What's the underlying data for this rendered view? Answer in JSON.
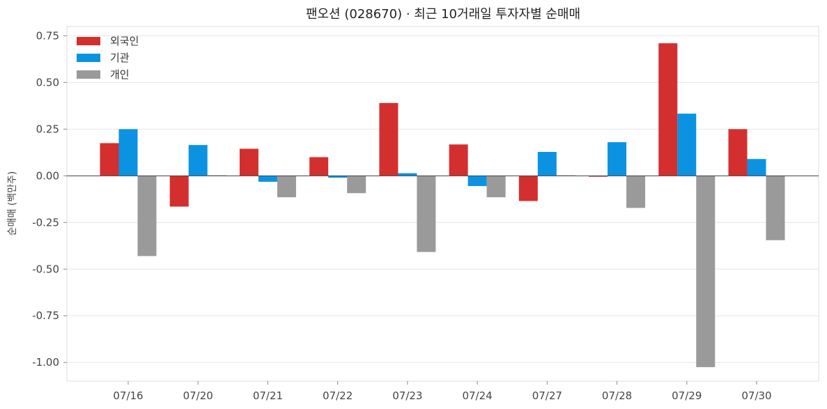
{
  "chart_data": {
    "type": "bar",
    "title": "팬오션 (028670) · 최근 10거래일 투자자별 순매매",
    "ylabel": "순매매 (백만주)",
    "xlabel": "",
    "categories": [
      "07/16",
      "07/20",
      "07/21",
      "07/22",
      "07/23",
      "07/24",
      "07/27",
      "07/28",
      "07/29",
      "07/30"
    ],
    "series": [
      {
        "name": "외국인",
        "color": "#d32f2f",
        "values": [
          0.175,
          -0.165,
          0.145,
          0.1,
          0.39,
          0.168,
          -0.135,
          -0.005,
          0.71,
          0.25
        ]
      },
      {
        "name": "기관",
        "color": "#0b93e2",
        "values": [
          0.25,
          0.165,
          -0.032,
          -0.01,
          0.014,
          -0.055,
          0.128,
          0.18,
          0.333,
          0.09
        ]
      },
      {
        "name": "개인",
        "color": "#9a9a9a",
        "values": [
          -0.43,
          0.003,
          -0.115,
          -0.093,
          -0.408,
          -0.115,
          0.003,
          -0.172,
          -1.025,
          -0.345
        ]
      }
    ],
    "ylim": [
      -1.1,
      0.8
    ],
    "yticks": [
      -1.0,
      -0.75,
      -0.5,
      -0.25,
      0.0,
      0.25,
      0.5,
      0.75
    ],
    "yticklabels": [
      "-1.00",
      "-0.75",
      "-0.50",
      "-0.25",
      "0.00",
      "0.25",
      "0.50",
      "0.75"
    ],
    "grid": true,
    "legend_position": "top-left"
  }
}
